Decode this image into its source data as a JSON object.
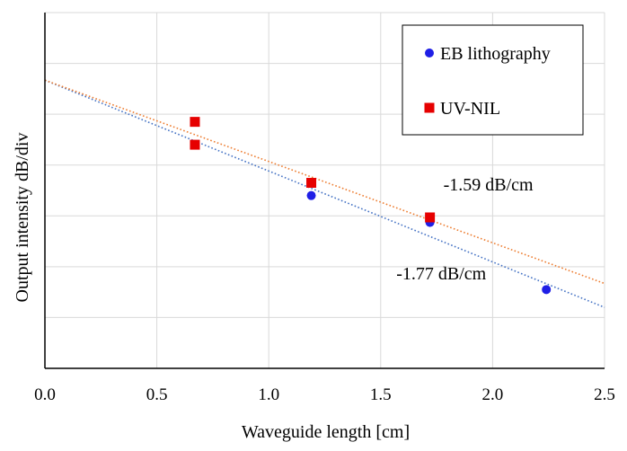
{
  "chart_data": {
    "type": "scatter",
    "xlabel": "Waveguide length [cm]",
    "ylabel": "Output intensity  dB/div",
    "xlim": [
      0,
      2.5
    ],
    "ylim": [
      0,
      7
    ],
    "x_ticks": [
      "0.0",
      "0.5",
      "1.0",
      "1.5",
      "2.0",
      "2.5"
    ],
    "x_tick_values": [
      0,
      0.5,
      1.0,
      1.5,
      2.0,
      2.5
    ],
    "y_tick_values": [
      0,
      1,
      2,
      3,
      4,
      5,
      6,
      7
    ],
    "grid": true,
    "legend_position": "top-right",
    "series": [
      {
        "name": "EB lithography",
        "marker": "circle",
        "color": "#1f1fe6",
        "x": [
          0.67,
          1.19,
          1.72,
          2.24
        ],
        "y": [
          4.4,
          3.4,
          2.87,
          1.55
        ],
        "trendline": {
          "color": "#4472c4",
          "x": [
            0,
            2.5
          ],
          "y": [
            5.67,
            1.2
          ]
        }
      },
      {
        "name": "UV-NIL",
        "marker": "square",
        "color": "#e60000",
        "x": [
          0.67,
          0.67,
          1.19,
          1.72
        ],
        "y": [
          4.85,
          4.4,
          3.65,
          2.97
        ],
        "trendline": {
          "color": "#ed7d31",
          "x": [
            0,
            2.5
          ],
          "y": [
            5.67,
            1.67
          ]
        }
      }
    ],
    "annotations": [
      {
        "text": "-1.59 dB/cm",
        "x": 1.78,
        "y": 3.5
      },
      {
        "text": "-1.77 dB/cm",
        "x": 1.57,
        "y": 1.75
      }
    ]
  }
}
